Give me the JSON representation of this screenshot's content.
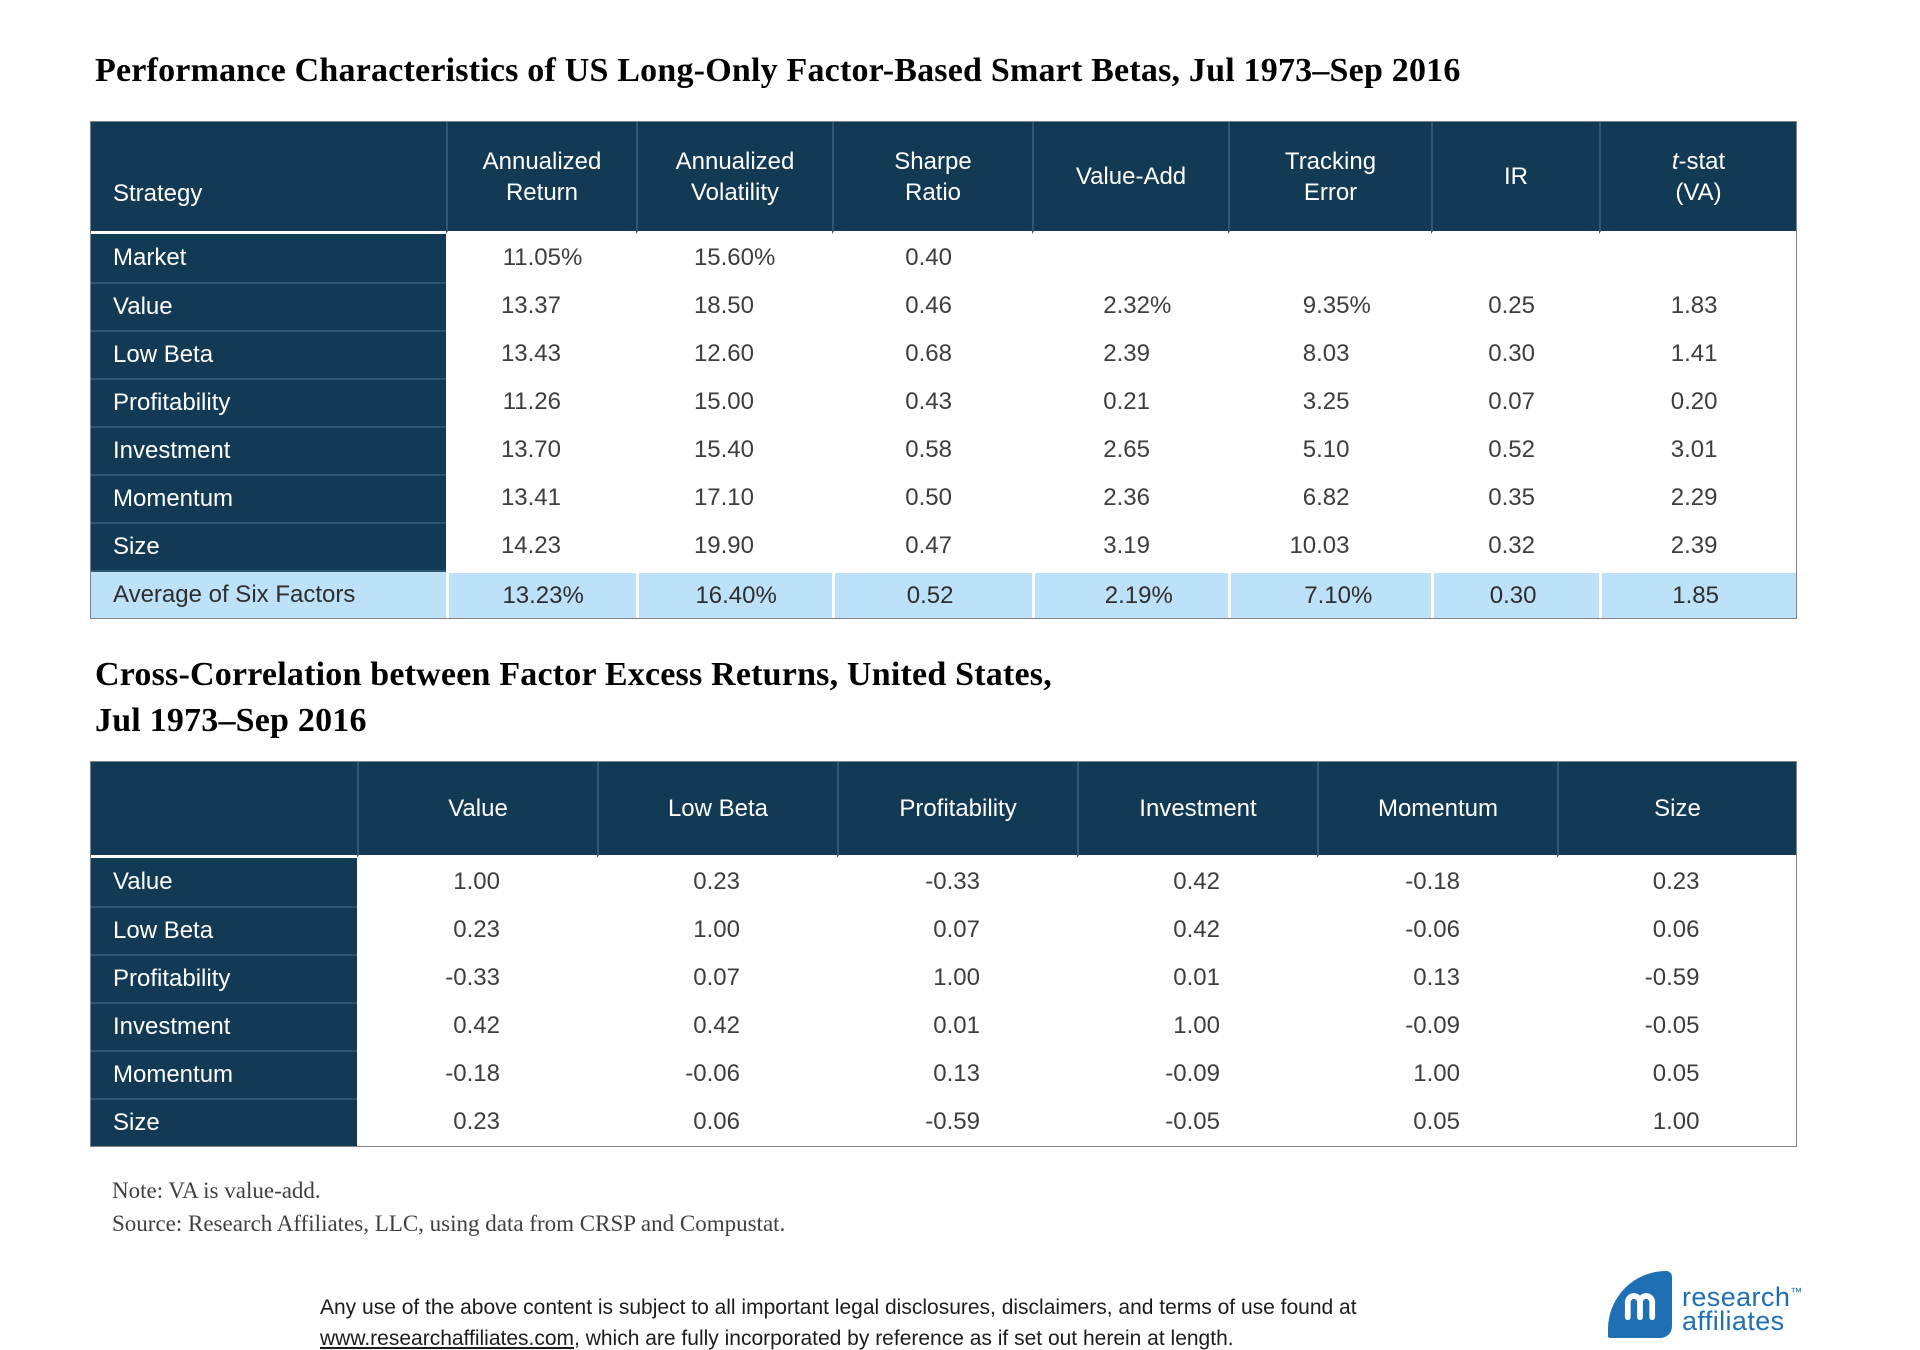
{
  "table1": {
    "title": "Performance Characteristics of US Long-Only Factor-Based Smart Betas, Jul 1973–Sep 2016",
    "columns": [
      {
        "lines": [
          "Strategy"
        ]
      },
      {
        "lines": [
          "Annualized",
          "Return"
        ]
      },
      {
        "lines": [
          "Annualized",
          "Volatility"
        ]
      },
      {
        "lines": [
          "Sharpe",
          "Ratio"
        ]
      },
      {
        "lines": [
          "Value-Add"
        ]
      },
      {
        "lines": [
          "Tracking",
          "Error"
        ]
      },
      {
        "lines": [
          "IR"
        ]
      },
      {
        "lines": [
          "t-stat",
          "(VA)"
        ],
        "italic_first_char": true
      }
    ],
    "rows": [
      [
        "Market",
        "11.05%",
        "15.60%",
        "0.40",
        "",
        "",
        "",
        ""
      ],
      [
        "Value",
        "13.37",
        "18.50",
        "0.46",
        "2.32%",
        "9.35%",
        "0.25",
        "1.83"
      ],
      [
        "Low Beta",
        "13.43",
        "12.60",
        "0.68",
        "2.39",
        "8.03",
        "0.30",
        "1.41"
      ],
      [
        "Profitability",
        "11.26",
        "15.00",
        "0.43",
        "0.21",
        "3.25",
        "0.07",
        "0.20"
      ],
      [
        "Investment",
        "13.70",
        "15.40",
        "0.58",
        "2.65",
        "5.10",
        "0.52",
        "3.01"
      ],
      [
        "Momentum",
        "13.41",
        "17.10",
        "0.50",
        "2.36",
        "6.82",
        "0.35",
        "2.29"
      ],
      [
        "Size",
        "14.23",
        "19.90",
        "0.47",
        "3.19",
        "10.03",
        "0.32",
        "2.39"
      ]
    ],
    "average_row": [
      "Average of Six Factors",
      "13.23%",
      "16.40%",
      "0.52",
      "2.19%",
      "7.10%",
      "0.30",
      "1.85"
    ]
  },
  "table2": {
    "title_line1": "Cross-Correlation between Factor Excess Returns, United States,",
    "title_line2": "Jul 1973–Sep 2016",
    "columns": [
      {
        "lines": [
          ""
        ]
      },
      {
        "lines": [
          "Value"
        ]
      },
      {
        "lines": [
          "Low Beta"
        ]
      },
      {
        "lines": [
          "Profitability"
        ]
      },
      {
        "lines": [
          "Investment"
        ]
      },
      {
        "lines": [
          "Momentum"
        ]
      },
      {
        "lines": [
          "Size"
        ]
      }
    ],
    "rows": [
      [
        "Value",
        "1.00",
        "0.23",
        "-0.33",
        "0.42",
        "-0.18",
        "0.23"
      ],
      [
        "Low Beta",
        "0.23",
        "1.00",
        "0.07",
        "0.42",
        "-0.06",
        "0.06"
      ],
      [
        "Profitability",
        "-0.33",
        "0.07",
        "1.00",
        "0.01",
        "0.13",
        "-0.59"
      ],
      [
        "Investment",
        "0.42",
        "0.42",
        "0.01",
        "1.00",
        "-0.09",
        "-0.05"
      ],
      [
        "Momentum",
        "-0.18",
        "-0.06",
        "0.13",
        "-0.09",
        "1.00",
        "0.05"
      ],
      [
        "Size",
        "0.23",
        "0.06",
        "-0.59",
        "-0.05",
        "0.05",
        "1.00"
      ]
    ]
  },
  "notes": {
    "note": "Note: VA is value-add.",
    "source": "Source: Research Affiliates, LLC, using data from CRSP and Compustat."
  },
  "footer": {
    "legal_line1": "Any use of the above content is subject to all important legal disclosures, disclaimers, and terms of use found at",
    "legal_link": "www.researchaffiliates.com",
    "legal_line2_after_link": ", which are fully incorporated by reference as if set out herein at length."
  },
  "logo": {
    "line1": "research",
    "line2": "affiliates",
    "tm": "™"
  },
  "colors": {
    "header_navy": "#133a55",
    "average_row_blue": "#bce1f8",
    "table_border_gray": "#828282",
    "body_text_gray": "#3d3d3d",
    "logo_blue": "#1e6fb3"
  }
}
